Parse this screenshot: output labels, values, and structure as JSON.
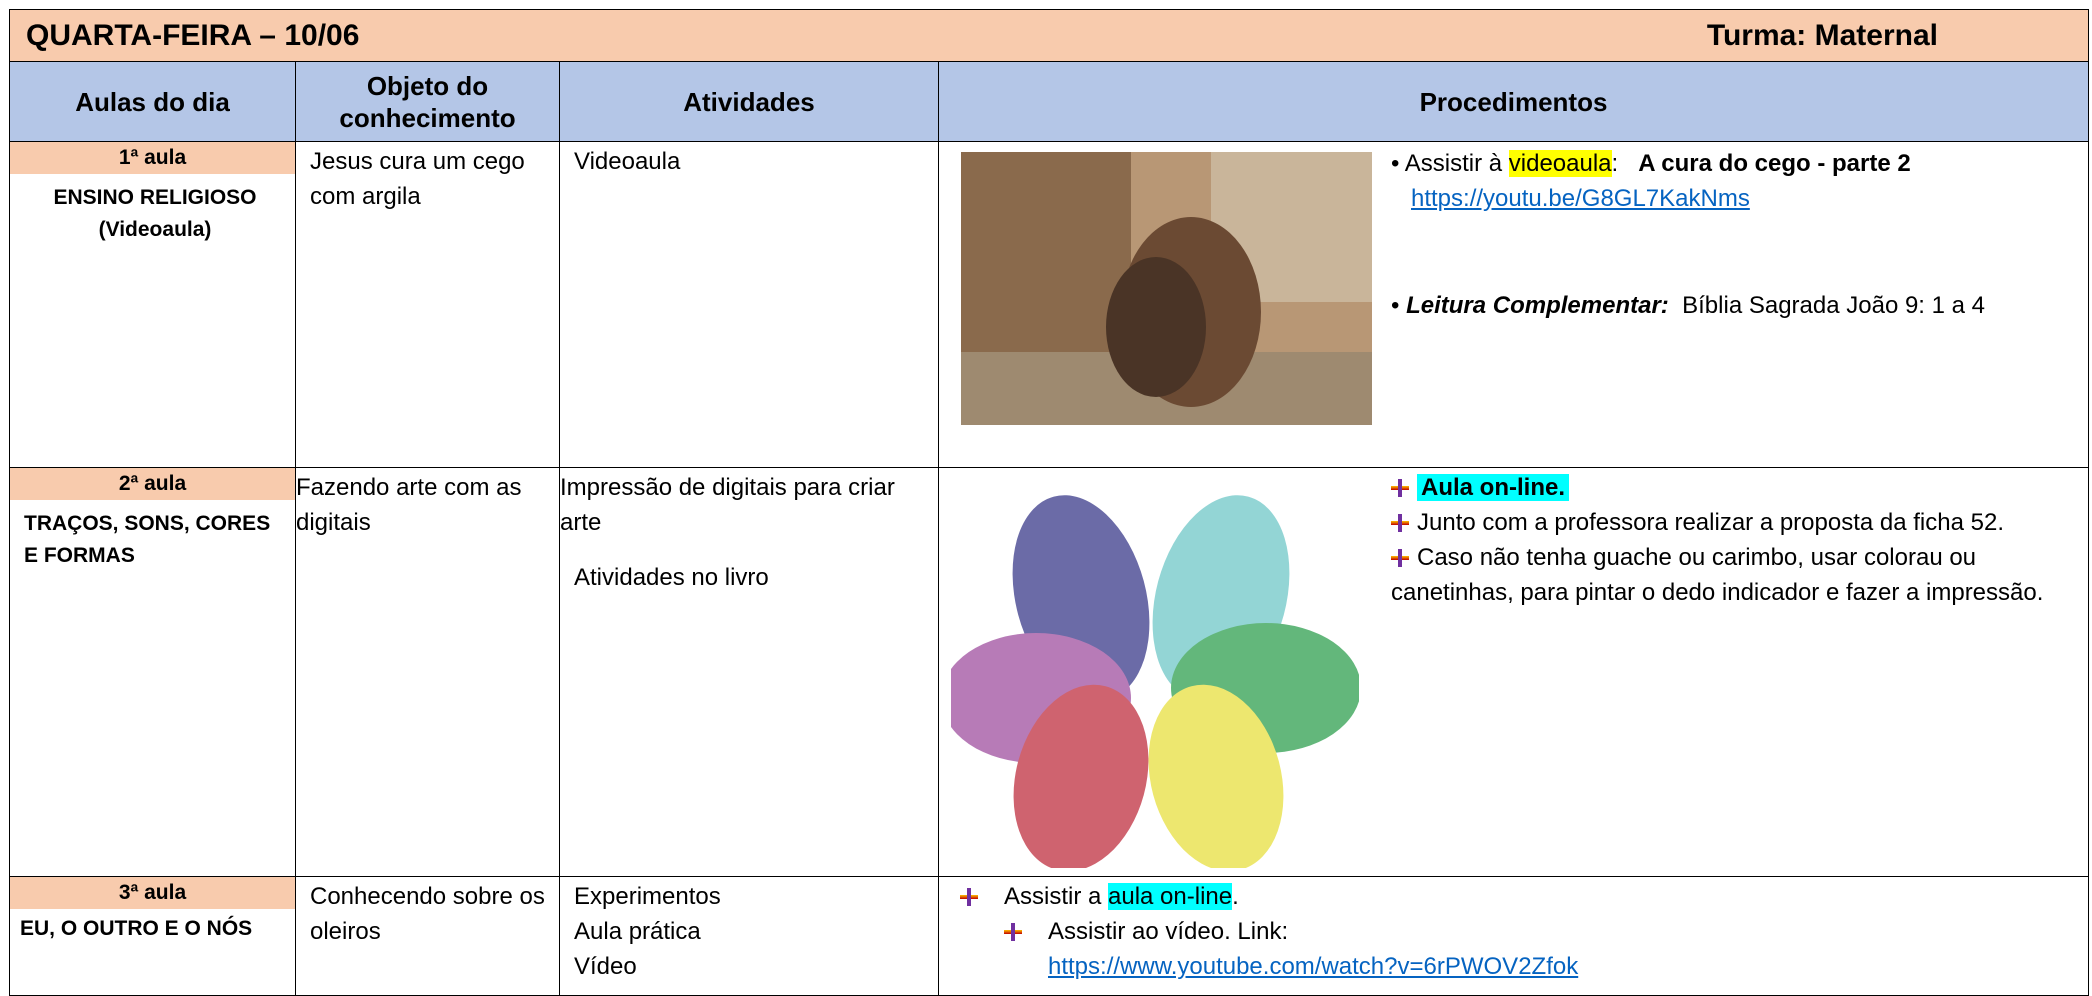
{
  "header": {
    "title": "QUARTA-FEIRA – 10/06",
    "turma": "Turma: Maternal"
  },
  "columns": [
    "Aulas do dia",
    "Objeto do conhecimento",
    "Atividades",
    "Procedimentos"
  ],
  "rows": [
    {
      "aula": "1ª aula",
      "subject": "ENSINO RELIGIOSO (Videoaula)",
      "objeto": "Jesus cura um cego com argila",
      "atividades": [
        "Videoaula"
      ],
      "procedimentos": [
        {
          "parts": [
            "Assistir à ",
            "videoaula",
            ":   ",
            "A cura do cego - parte 2"
          ],
          "link": "https://youtu.be/G8GL7KakNms"
        },
        {
          "parts": [
            "Leitura Complementar:",
            "  Bíblia Sagrada João 9: 1 a 4"
          ]
        }
      ]
    },
    {
      "aula": "2ª aula",
      "subject": "TRAÇOS, SONS, CORES E FORMAS",
      "objeto": "Fazendo arte com as digitais",
      "atividades": [
        "Impressão de digitais para criar arte",
        "Atividades no livro"
      ],
      "procedimentos": [
        "Aula on-line.",
        "Junto com a professora realizar a proposta da ficha 52.",
        "Caso não tenha guache ou carimbo, usar colorau ou canetinhas, para pintar o dedo indicador e fazer a impressão."
      ]
    },
    {
      "aula": "3ª aula",
      "subject": "EU, O OUTRO E O NÓS",
      "objeto": "Conhecendo sobre os oleiros",
      "atividades": [
        "Experimentos",
        "Aula prática",
        "Vídeo"
      ],
      "procedimentos": [
        {
          "parts": [
            "Assistir a ",
            "aula on-line",
            "."
          ]
        },
        {
          "parts": [
            "Assistir ao vídeo. Link:"
          ],
          "link": "https://www.youtube.com/watch?v=6rPWOV2Zfok"
        }
      ]
    }
  ]
}
